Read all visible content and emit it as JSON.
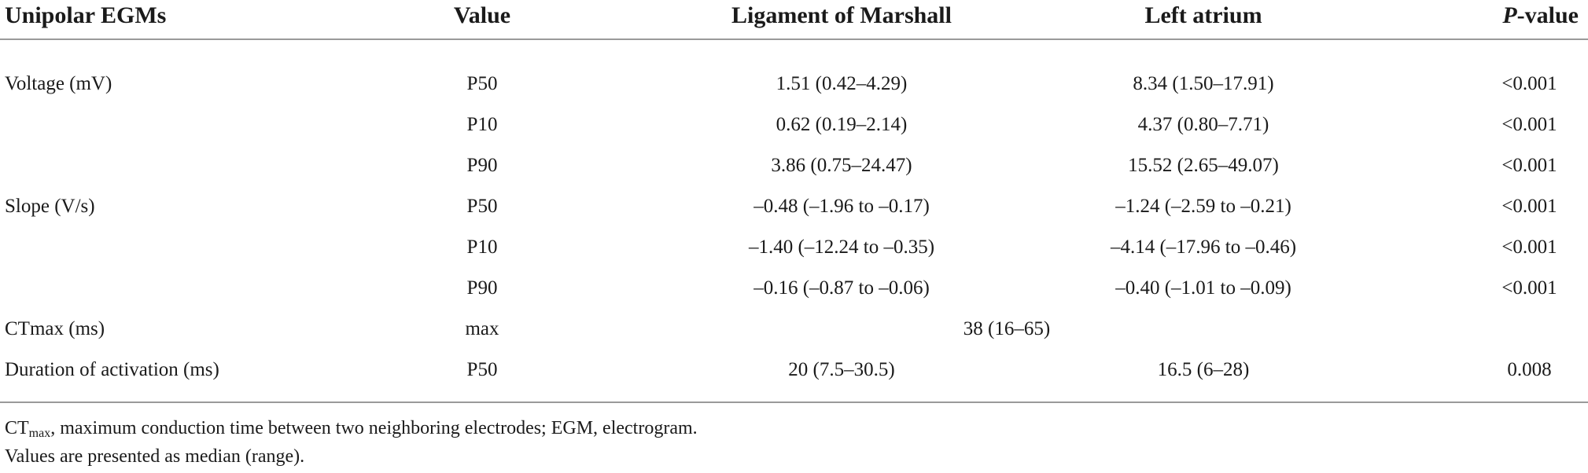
{
  "header": {
    "col1": "Unipolar EGMs",
    "col2": "Value",
    "col3": "Ligament of Marshall",
    "col4": "Left atrium",
    "col5_italic": "P",
    "col5_rest": "-value"
  },
  "rows": [
    {
      "label": "Voltage (mV)",
      "value": "P50",
      "lom": "1.51 (0.42–4.29)",
      "la": "8.34 (1.50–17.91)",
      "p": "<0.001"
    },
    {
      "label": "",
      "value": "P10",
      "lom": "0.62 (0.19–2.14)",
      "la": "4.37 (0.80–7.71)",
      "p": "<0.001"
    },
    {
      "label": "",
      "value": "P90",
      "lom": "3.86 (0.75–24.47)",
      "la": "15.52 (2.65–49.07)",
      "p": "<0.001"
    },
    {
      "label": "Slope (V/s)",
      "value": "P50",
      "lom": "–0.48 (–1.96 to –0.17)",
      "la": "–1.24 (–2.59 to –0.21)",
      "p": "<0.001"
    },
    {
      "label": "",
      "value": "P10",
      "lom": "–1.40 (–12.24 to –0.35)",
      "la": "–4.14 (–17.96 to –0.46)",
      "p": "<0.001"
    },
    {
      "label": "",
      "value": "P90",
      "lom": "–0.16 (–0.87 to –0.06)",
      "la": "–0.40 (–1.01 to –0.09)",
      "p": "<0.001"
    },
    {
      "label": "CTmax (ms)",
      "value": "max",
      "span": "38 (16–65)",
      "p": ""
    },
    {
      "label": "Duration of activation (ms)",
      "value": "P50",
      "lom": "20 (7.5–30.5)",
      "la": "16.5 (6–28)",
      "p": "0.008"
    }
  ],
  "footnotes": {
    "line1_prefix": "CT",
    "line1_sub": "max",
    "line1_rest": ", maximum conduction time between two neighboring electrodes; EGM, electrogram.",
    "line2": "Values are presented as median (range)."
  }
}
